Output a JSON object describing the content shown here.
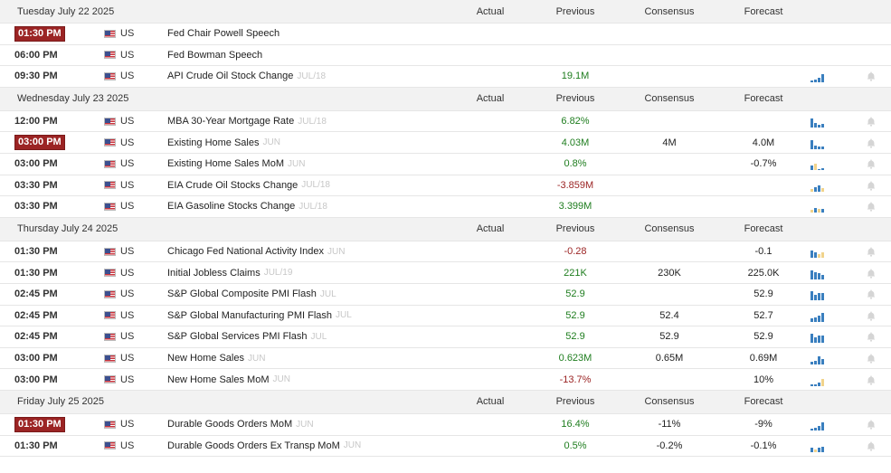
{
  "columns": {
    "actual": "Actual",
    "previous": "Previous",
    "consensus": "Consensus",
    "forecast": "Forecast"
  },
  "days": [
    {
      "date": "Tuesday July 22 2025",
      "events": [
        {
          "time": "01:30 PM",
          "highlight": true,
          "country": "US",
          "name": "Fed Chair Powell Speech",
          "period": "",
          "actual": "",
          "previous": "",
          "previous_tone": "neu",
          "consensus": "",
          "forecast": "",
          "spark": []
        },
        {
          "time": "06:00 PM",
          "highlight": false,
          "country": "US",
          "name": "Fed Bowman Speech",
          "period": "",
          "actual": "",
          "previous": "",
          "previous_tone": "neu",
          "consensus": "",
          "forecast": "",
          "spark": []
        },
        {
          "time": "09:30 PM",
          "highlight": false,
          "country": "US",
          "name": "API Crude Oil Stock Change",
          "period": "JUL/18",
          "actual": "",
          "previous": "19.1M",
          "previous_tone": "pos",
          "consensus": "",
          "forecast": "",
          "spark": [
            {
              "h": 2,
              "y": false
            },
            {
              "h": 3,
              "y": false
            },
            {
              "h": 5,
              "y": false
            },
            {
              "h": 9,
              "y": false
            }
          ],
          "bell": true
        }
      ]
    },
    {
      "date": "Wednesday July 23 2025",
      "events": [
        {
          "time": "12:00 PM",
          "highlight": false,
          "country": "US",
          "name": "MBA 30-Year Mortgage Rate",
          "period": "JUL/18",
          "actual": "",
          "previous": "6.82%",
          "previous_tone": "pos",
          "consensus": "",
          "forecast": "",
          "spark": [
            {
              "h": 10,
              "y": false
            },
            {
              "h": 5,
              "y": false
            },
            {
              "h": 3,
              "y": false
            },
            {
              "h": 4,
              "y": false
            }
          ],
          "bell": true
        },
        {
          "time": "03:00 PM",
          "highlight": true,
          "country": "US",
          "name": "Existing Home Sales",
          "period": "JUN",
          "actual": "",
          "previous": "4.03M",
          "previous_tone": "pos",
          "consensus": "4M",
          "forecast": "4.0M",
          "spark": [
            {
              "h": 10,
              "y": false
            },
            {
              "h": 4,
              "y": false
            },
            {
              "h": 3,
              "y": false
            },
            {
              "h": 3,
              "y": false
            }
          ],
          "bell": true
        },
        {
          "time": "03:00 PM",
          "highlight": false,
          "country": "US",
          "name": "Existing Home Sales MoM",
          "period": "JUN",
          "actual": "",
          "previous": "0.8%",
          "previous_tone": "pos",
          "consensus": "",
          "forecast": "-0.7%",
          "spark": [
            {
              "h": 5,
              "y": false
            },
            {
              "h": 7,
              "y": true
            },
            {
              "h": 1,
              "y": false
            },
            {
              "h": 2,
              "y": false
            }
          ],
          "bell": true
        },
        {
          "time": "03:30 PM",
          "highlight": false,
          "country": "US",
          "name": "EIA Crude Oil Stocks Change",
          "period": "JUL/18",
          "actual": "",
          "previous": "-3.859M",
          "previous_tone": "neg",
          "consensus": "",
          "forecast": "",
          "spark": [
            {
              "h": 3,
              "y": true
            },
            {
              "h": 5,
              "y": false
            },
            {
              "h": 7,
              "y": false
            },
            {
              "h": 4,
              "y": true
            }
          ],
          "bell": true
        },
        {
          "time": "03:30 PM",
          "highlight": false,
          "country": "US",
          "name": "EIA Gasoline Stocks Change",
          "period": "JUL/18",
          "actual": "",
          "previous": "3.399M",
          "previous_tone": "pos",
          "consensus": "",
          "forecast": "",
          "spark": [
            {
              "h": 3,
              "y": true
            },
            {
              "h": 5,
              "y": false
            },
            {
              "h": 4,
              "y": true
            },
            {
              "h": 4,
              "y": false
            }
          ],
          "bell": true
        }
      ]
    },
    {
      "date": "Thursday July 24 2025",
      "events": [
        {
          "time": "01:30 PM",
          "highlight": false,
          "country": "US",
          "name": "Chicago Fed National Activity Index",
          "period": "JUN",
          "actual": "",
          "previous": "-0.28",
          "previous_tone": "neg",
          "consensus": "",
          "forecast": "-0.1",
          "spark": [
            {
              "h": 8,
              "y": false
            },
            {
              "h": 6,
              "y": false
            },
            {
              "h": 4,
              "y": true
            },
            {
              "h": 6,
              "y": true
            }
          ],
          "bell": true
        },
        {
          "time": "01:30 PM",
          "highlight": false,
          "country": "US",
          "name": "Initial Jobless Claims",
          "period": "JUL/19",
          "actual": "",
          "previous": "221K",
          "previous_tone": "pos",
          "consensus": "230K",
          "forecast": "225.0K",
          "spark": [
            {
              "h": 10,
              "y": false
            },
            {
              "h": 8,
              "y": false
            },
            {
              "h": 7,
              "y": false
            },
            {
              "h": 5,
              "y": false
            }
          ],
          "bell": true
        },
        {
          "time": "02:45 PM",
          "highlight": false,
          "country": "US",
          "name": "S&P Global Composite PMI Flash",
          "period": "JUL",
          "actual": "",
          "previous": "52.9",
          "previous_tone": "pos",
          "consensus": "",
          "forecast": "52.9",
          "spark": [
            {
              "h": 10,
              "y": false
            },
            {
              "h": 6,
              "y": false
            },
            {
              "h": 8,
              "y": false
            },
            {
              "h": 8,
              "y": false
            }
          ],
          "bell": true
        },
        {
          "time": "02:45 PM",
          "highlight": false,
          "country": "US",
          "name": "S&P Global Manufacturing PMI Flash",
          "period": "JUL",
          "actual": "",
          "previous": "52.9",
          "previous_tone": "pos",
          "consensus": "52.4",
          "forecast": "52.7",
          "spark": [
            {
              "h": 4,
              "y": false
            },
            {
              "h": 5,
              "y": false
            },
            {
              "h": 7,
              "y": false
            },
            {
              "h": 10,
              "y": false
            }
          ],
          "bell": true
        },
        {
          "time": "02:45 PM",
          "highlight": false,
          "country": "US",
          "name": "S&P Global Services PMI Flash",
          "period": "JUL",
          "actual": "",
          "previous": "52.9",
          "previous_tone": "pos",
          "consensus": "52.9",
          "forecast": "52.9",
          "spark": [
            {
              "h": 10,
              "y": false
            },
            {
              "h": 6,
              "y": false
            },
            {
              "h": 8,
              "y": false
            },
            {
              "h": 8,
              "y": false
            }
          ],
          "bell": true
        },
        {
          "time": "03:00 PM",
          "highlight": false,
          "country": "US",
          "name": "New Home Sales",
          "period": "JUN",
          "actual": "",
          "previous": "0.623M",
          "previous_tone": "pos",
          "consensus": "0.65M",
          "forecast": "0.69M",
          "spark": [
            {
              "h": 3,
              "y": false
            },
            {
              "h": 4,
              "y": false
            },
            {
              "h": 9,
              "y": false
            },
            {
              "h": 6,
              "y": false
            }
          ],
          "bell": true
        },
        {
          "time": "03:00 PM",
          "highlight": false,
          "country": "US",
          "name": "New Home Sales MoM",
          "period": "JUN",
          "actual": "",
          "previous": "-13.7%",
          "previous_tone": "neg",
          "consensus": "",
          "forecast": "10%",
          "spark": [
            {
              "h": 2,
              "y": false
            },
            {
              "h": 2,
              "y": false
            },
            {
              "h": 4,
              "y": false
            },
            {
              "h": 8,
              "y": true
            }
          ],
          "bell": true
        }
      ]
    },
    {
      "date": "Friday July 25 2025",
      "events": [
        {
          "time": "01:30 PM",
          "highlight": true,
          "country": "US",
          "name": "Durable Goods Orders MoM",
          "period": "JUN",
          "actual": "",
          "previous": "16.4%",
          "previous_tone": "pos",
          "consensus": "-11%",
          "forecast": "-9%",
          "spark": [
            {
              "h": 2,
              "y": false
            },
            {
              "h": 3,
              "y": false
            },
            {
              "h": 5,
              "y": false
            },
            {
              "h": 9,
              "y": false
            }
          ],
          "bell": true
        },
        {
          "time": "01:30 PM",
          "highlight": false,
          "country": "US",
          "name": "Durable Goods Orders Ex Transp MoM",
          "period": "JUN",
          "actual": "",
          "previous": "0.5%",
          "previous_tone": "pos",
          "consensus": "-0.2%",
          "forecast": "-0.1%",
          "spark": [
            {
              "h": 5,
              "y": false
            },
            {
              "h": 3,
              "y": true
            },
            {
              "h": 5,
              "y": false
            },
            {
              "h": 6,
              "y": false
            }
          ],
          "bell": true
        }
      ]
    }
  ],
  "colors": {
    "badge": "#9b2424",
    "positive": "#1e7d1e",
    "negative": "#9b2424",
    "bar": "#3a7fbf",
    "bar_alt": "#f1d38b",
    "header_bg": "#f2f2f2"
  },
  "icons": {
    "flag": "us-flag-icon",
    "bell": "bell-icon"
  }
}
